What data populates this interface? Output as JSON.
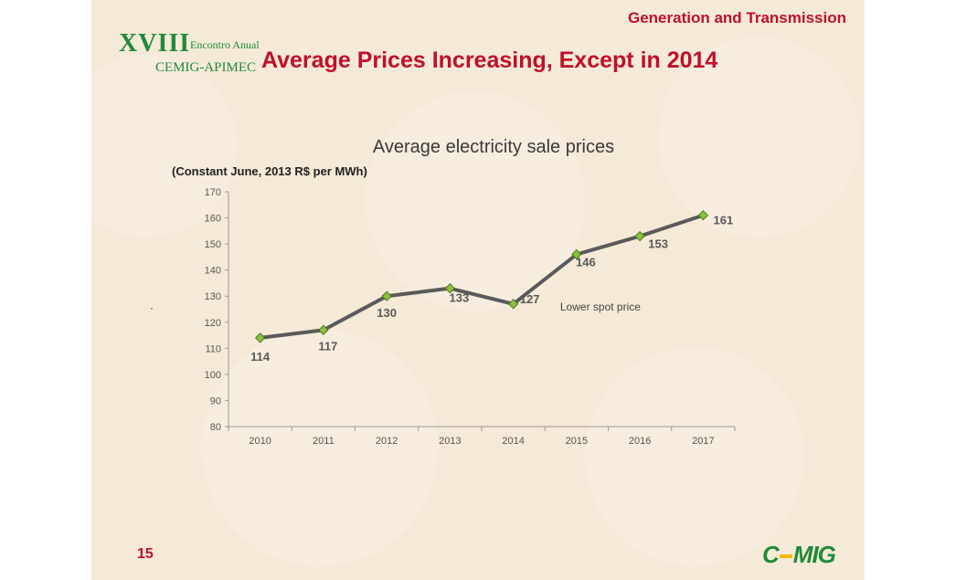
{
  "header": {
    "section": "Generation and Transmission",
    "title": "Average Prices Increasing, Except in 2014"
  },
  "logo": {
    "numeral": "XVIII",
    "line1": "Encontro Anual",
    "line2": "CEMIG-APIMEC"
  },
  "bullet": "·",
  "footer": {
    "page": "15",
    "brand_left": "C",
    "brand_right": "MIG"
  },
  "colors": {
    "accent_red": "#c0102a",
    "brand_green": "#1f8a3a",
    "line": "#5a5a5a",
    "marker_fill": "#8fbf3f",
    "marker_stroke": "#4a7a1a"
  },
  "chart_data": {
    "type": "line",
    "title": "Average electricity sale prices",
    "subtitle": "(Constant  June, 2013  R$ per MWh)",
    "xlabel": "",
    "ylabel": "",
    "categories": [
      "2010",
      "2011",
      "2012",
      "2013",
      "2014",
      "2015",
      "2016",
      "2017"
    ],
    "series": [
      {
        "values": [
          114,
          117,
          130,
          133,
          127,
          146,
          153,
          161
        ]
      }
    ],
    "data_labels": [
      "114",
      "117",
      "130",
      "133",
      "127",
      "146",
      "153",
      "161"
    ],
    "ylim": [
      80,
      170
    ],
    "yticks": [
      "80",
      "90",
      "100",
      "110",
      "120",
      "130",
      "140",
      "150",
      "160",
      "170"
    ],
    "annotations": [
      {
        "text": "Lower spot price",
        "x": "2015",
        "y": 130
      }
    ],
    "grid": false,
    "legend": "none"
  }
}
